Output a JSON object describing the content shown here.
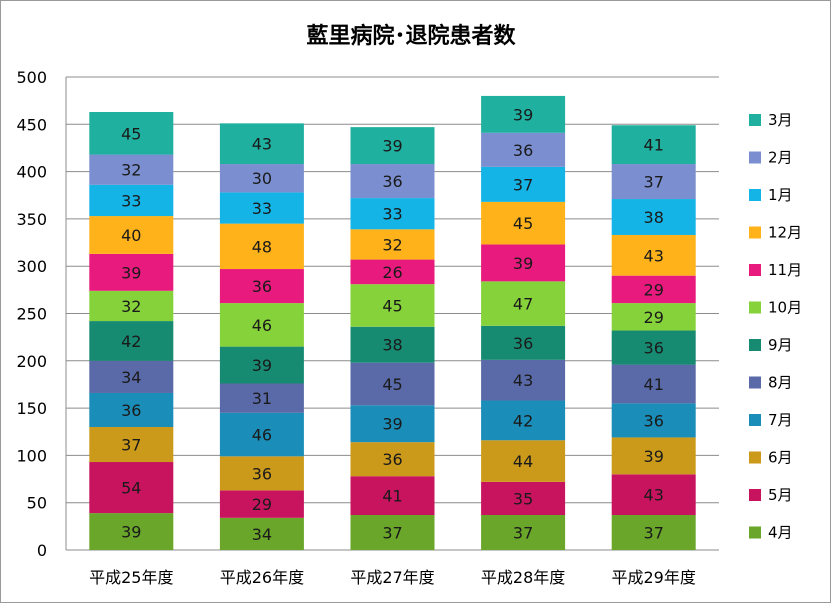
{
  "chart_data": {
    "type": "bar",
    "stacked": true,
    "title": "藍里病院･退院患者数",
    "categories": [
      "平成25年度",
      "平成26年度",
      "平成27年度",
      "平成28年度",
      "平成29年度"
    ],
    "ylim": [
      0,
      500
    ],
    "yticks": [
      0,
      50,
      100,
      150,
      200,
      250,
      300,
      350,
      400,
      450,
      500
    ],
    "grid": true,
    "legend_position": "right",
    "series": [
      {
        "name": "4月",
        "color": "#6aa62a",
        "values": [
          39,
          34,
          37,
          37,
          37
        ]
      },
      {
        "name": "5月",
        "color": "#c8145e",
        "values": [
          54,
          29,
          41,
          35,
          43
        ]
      },
      {
        "name": "6月",
        "color": "#cc9a1a",
        "values": [
          37,
          36,
          36,
          44,
          39
        ]
      },
      {
        "name": "7月",
        "color": "#1a8db8",
        "values": [
          36,
          46,
          39,
          42,
          36
        ]
      },
      {
        "name": "8月",
        "color": "#5a6aa8",
        "values": [
          34,
          31,
          45,
          43,
          41
        ]
      },
      {
        "name": "9月",
        "color": "#178a72",
        "values": [
          42,
          39,
          38,
          36,
          36
        ]
      },
      {
        "name": "10月",
        "color": "#86d23a",
        "values": [
          32,
          46,
          45,
          47,
          29
        ]
      },
      {
        "name": "11月",
        "color": "#e81a7e",
        "values": [
          39,
          36,
          26,
          39,
          29
        ]
      },
      {
        "name": "12月",
        "color": "#ffb21a",
        "values": [
          40,
          48,
          32,
          45,
          43
        ]
      },
      {
        "name": "1月",
        "color": "#15b4e6",
        "values": [
          33,
          33,
          33,
          37,
          38
        ]
      },
      {
        "name": "2月",
        "color": "#7b8fd0",
        "values": [
          32,
          30,
          36,
          36,
          37
        ]
      },
      {
        "name": "3月",
        "color": "#1fb0a0",
        "values": [
          45,
          43,
          39,
          39,
          41
        ]
      }
    ]
  }
}
